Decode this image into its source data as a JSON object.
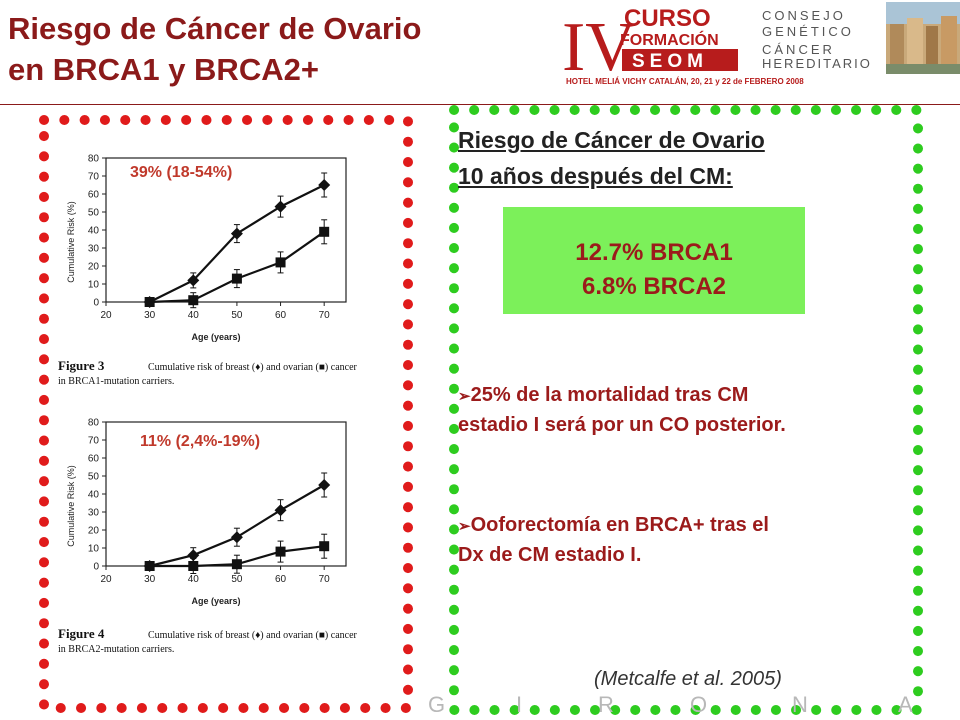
{
  "title": {
    "line1": "Riesgo de Cáncer de Ovario",
    "line2": "en BRCA1 y BRCA2+"
  },
  "logo": {
    "roman": "IV",
    "curso": "CURSO",
    "formacion": "FORMACIÓN",
    "seom": "SEOM",
    "consejo": [
      "CONSEJO",
      "GENÉTICO",
      "CÁNCER",
      "HEREDITARIO"
    ],
    "hotel": "HOTEL MELIÁ VICHY CATALÁN, 20, 21 y 22 de FEBRERO 2008"
  },
  "chart1": {
    "risk_label": "39% (18-54%)",
    "ylabel": "Cumulative Risk (%)",
    "xlabel": "Age (years)",
    "yticks": [
      "0",
      "10",
      "20",
      "30",
      "40",
      "50",
      "60",
      "70",
      "80"
    ],
    "xticks": [
      "20",
      "30",
      "40",
      "50",
      "60",
      "70"
    ],
    "caption_fig": "Figure 3",
    "caption_line1": "Cumulative risk of breast (♦) and ovarian (■) cancer",
    "caption_line2": "in BRCA1-mutation carriers."
  },
  "chart2": {
    "risk_label": "11% (2,4%-19%)",
    "ylabel": "Cumulative Risk (%)",
    "xlabel": "Age (years)",
    "yticks": [
      "0",
      "10",
      "20",
      "30",
      "40",
      "50",
      "60",
      "70",
      "80"
    ],
    "xticks": [
      "20",
      "30",
      "40",
      "50",
      "60",
      "70"
    ],
    "caption_fig": "Figure 4",
    "caption_line1": "Cumulative risk of breast (♦) and ovarian (■) cancer",
    "caption_line2": "in BRCA2-mutation carriers."
  },
  "chart_data": [
    {
      "type": "line",
      "x": [
        30,
        40,
        50,
        60,
        70
      ],
      "series": [
        {
          "name": "breast",
          "values": [
            0,
            12,
            38,
            53,
            65
          ]
        },
        {
          "name": "ovarian",
          "values": [
            0,
            1,
            13,
            22,
            39
          ]
        }
      ],
      "xlim": [
        20,
        75
      ],
      "ylim": [
        0,
        80
      ]
    },
    {
      "type": "line",
      "x": [
        30,
        40,
        50,
        60,
        70
      ],
      "series": [
        {
          "name": "breast",
          "values": [
            0,
            6,
            16,
            31,
            45
          ]
        },
        {
          "name": "ovarian",
          "values": [
            0,
            0,
            1,
            8,
            11
          ]
        }
      ],
      "xlim": [
        20,
        75
      ],
      "ylim": [
        0,
        80
      ]
    }
  ],
  "right": {
    "heading_line1": "Riesgo de Cáncer de Ovario",
    "heading_line2": "10 años después del CM:",
    "box_line1": "12.7% BRCA1",
    "box_line2": "6.8%   BRCA2",
    "bullet1_line1": "25% de la mortalidad tras CM",
    "bullet1_line2": "estadio I será por un CO posterior.",
    "bullet2_line1": "Ooforectomía en BRCA+ tras el",
    "bullet2_line2": "Dx de CM estadio I.",
    "citation": "(Metcalfe et al. 2005)"
  },
  "footer_letters": [
    "G",
    "I",
    "R",
    "O",
    "N",
    "A"
  ],
  "colors": {
    "title": "#8b1a1a",
    "red_dots": "#e01b1b",
    "green_dots": "#2ecc1f",
    "box_green": "#7cf05a",
    "text_red": "#9b1b1b"
  }
}
